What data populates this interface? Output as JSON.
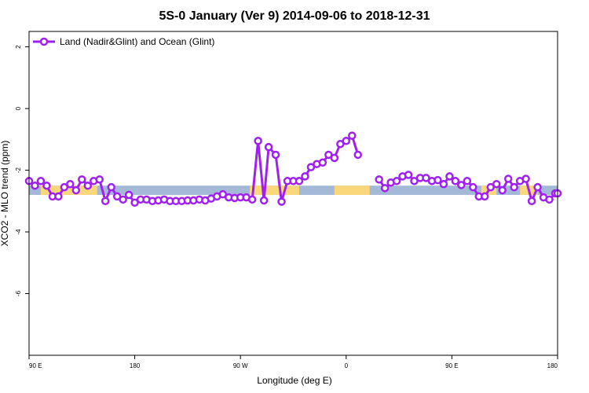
{
  "chart_data": {
    "type": "line",
    "title": "5S-0 January (Ver 9)   2014-09-06 to 2018-12-31",
    "xlabel": "Longitude (deg E)",
    "ylabel": "XCO2 - MLO trend (ppm)",
    "x_ticks": [
      {
        "pos": 90,
        "label": "90 E"
      },
      {
        "pos": 180,
        "label": "180"
      },
      {
        "pos": 270,
        "label": "90 W"
      },
      {
        "pos": 360,
        "label": "0"
      },
      {
        "pos": 450,
        "label": "90 E"
      },
      {
        "pos": 540,
        "label": "180"
      }
    ],
    "y_ticks": [
      {
        "value": 2,
        "label": "2"
      },
      {
        "value": 0,
        "label": "0"
      },
      {
        "value": -2,
        "label": "-2"
      },
      {
        "value": -4,
        "label": "-4"
      },
      {
        "value": -6,
        "label": "-6"
      }
    ],
    "xlim": [
      90,
      540
    ],
    "ylim": [
      -8,
      2.5
    ],
    "grid": false,
    "legend": {
      "position": "top-left"
    },
    "colors": {
      "series": "#a020f0",
      "ocean_band": "#a4b8d8",
      "land_band": "#fad77a",
      "axis": "#000000"
    },
    "land_mask": {
      "y_range": [
        -2.8,
        -2.5
      ],
      "land_segments": [
        [
          100,
          148
        ],
        [
          278,
          320
        ],
        [
          350,
          380
        ],
        [
          475,
          488
        ],
        [
          508,
          523
        ]
      ]
    },
    "series": [
      {
        "name": "Land (Nadir&Glint) and Ocean (Glint)",
        "segments": [
          [
            [
              90,
              -2.35
            ],
            [
              95,
              -2.5
            ],
            [
              100,
              -2.35
            ],
            [
              105,
              -2.5
            ],
            [
              110,
              -2.85
            ],
            [
              115,
              -2.85
            ],
            [
              120,
              -2.55
            ],
            [
              125,
              -2.45
            ],
            [
              130,
              -2.65
            ],
            [
              135,
              -2.3
            ],
            [
              140,
              -2.5
            ],
            [
              145,
              -2.35
            ],
            [
              150,
              -2.3
            ],
            [
              155,
              -3.0
            ],
            [
              160,
              -2.55
            ],
            [
              165,
              -2.85
            ],
            [
              170,
              -2.95
            ],
            [
              175,
              -2.8
            ],
            [
              180,
              -3.05
            ],
            [
              185,
              -2.95
            ],
            [
              190,
              -2.95
            ],
            [
              195,
              -3.0
            ],
            [
              200,
              -2.98
            ],
            [
              205,
              -2.95
            ],
            [
              210,
              -3.0
            ],
            [
              215,
              -3.0
            ],
            [
              220,
              -3.0
            ],
            [
              225,
              -2.98
            ],
            [
              230,
              -2.98
            ],
            [
              235,
              -2.95
            ],
            [
              240,
              -2.98
            ],
            [
              245,
              -2.92
            ],
            [
              250,
              -2.85
            ],
            [
              255,
              -2.78
            ],
            [
              260,
              -2.88
            ],
            [
              265,
              -2.9
            ],
            [
              270,
              -2.88
            ],
            [
              275,
              -2.88
            ],
            [
              280,
              -2.95
            ],
            [
              285,
              -1.05
            ],
            [
              290,
              -2.98
            ],
            [
              294,
              -1.25
            ],
            [
              300,
              -1.5
            ],
            [
              305,
              -3.02
            ],
            [
              310,
              -2.35
            ],
            [
              315,
              -2.35
            ],
            [
              320,
              -2.35
            ],
            [
              325,
              -2.2
            ],
            [
              330,
              -1.9
            ],
            [
              335,
              -1.8
            ],
            [
              340,
              -1.75
            ],
            [
              345,
              -1.5
            ],
            [
              350,
              -1.6
            ],
            [
              355,
              -1.15
            ],
            [
              360,
              -1.05
            ],
            [
              365,
              -0.88
            ],
            [
              370,
              -1.5
            ]
          ],
          [
            [
              388,
              -2.3
            ],
            [
              393,
              -2.58
            ],
            [
              398,
              -2.4
            ],
            [
              403,
              -2.35
            ],
            [
              408,
              -2.2
            ],
            [
              413,
              -2.15
            ],
            [
              418,
              -2.35
            ],
            [
              423,
              -2.25
            ],
            [
              428,
              -2.25
            ],
            [
              433,
              -2.35
            ],
            [
              438,
              -2.32
            ],
            [
              443,
              -2.45
            ],
            [
              448,
              -2.2
            ],
            [
              453,
              -2.35
            ],
            [
              458,
              -2.48
            ],
            [
              463,
              -2.35
            ],
            [
              468,
              -2.55
            ],
            [
              473,
              -2.85
            ],
            [
              478,
              -2.85
            ],
            [
              483,
              -2.55
            ],
            [
              488,
              -2.45
            ],
            [
              493,
              -2.65
            ],
            [
              498,
              -2.28
            ],
            [
              503,
              -2.55
            ],
            [
              508,
              -2.35
            ],
            [
              513,
              -2.28
            ],
            [
              518,
              -3.0
            ],
            [
              523,
              -2.55
            ],
            [
              528,
              -2.88
            ],
            [
              533,
              -2.95
            ],
            [
              538,
              -2.75
            ],
            [
              540,
              -2.75
            ]
          ]
        ]
      }
    ]
  }
}
